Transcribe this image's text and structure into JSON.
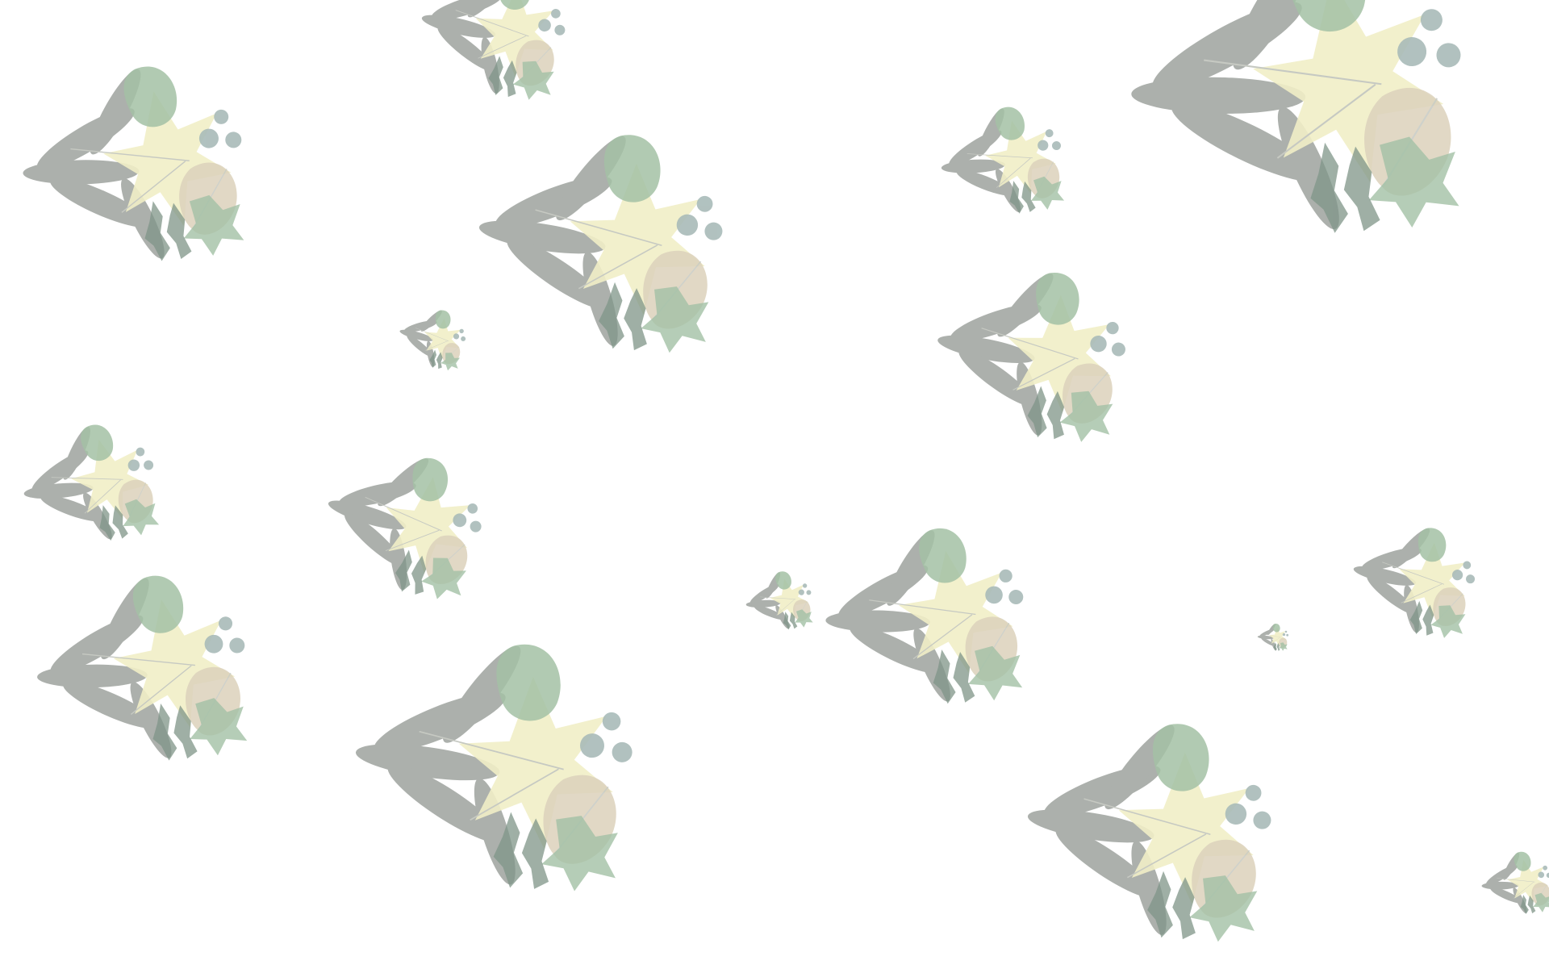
{
  "page": {
    "background_color": "#ffffff",
    "pattern": "leaf-cluster-wallpaper"
  },
  "palette": {
    "grey_leaf": "#9ea39e",
    "sage_leaf": "#a3c1a5",
    "yellow_leaf": "#f1eec6",
    "tan_leaf": "#dcd2bc",
    "teal_leaf": "#a9bbb9",
    "dark_leaf": "#7f9588"
  },
  "icons": {
    "cluster_icon": "leaf-cluster-icon"
  }
}
